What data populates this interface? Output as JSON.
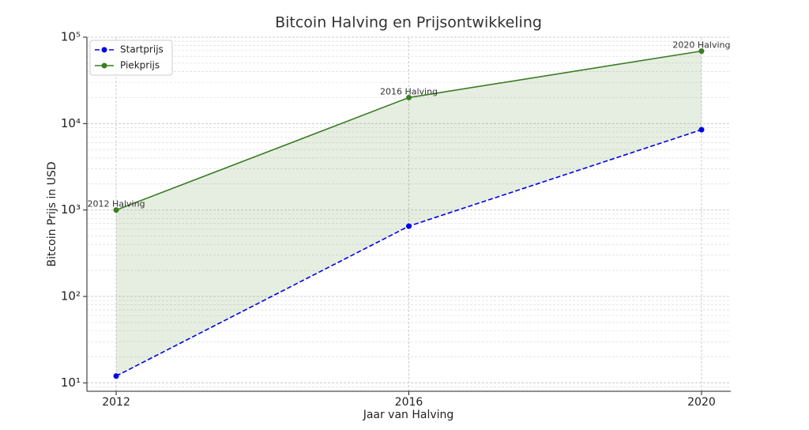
{
  "chart_data": {
    "type": "line",
    "title": "Bitcoin Halving en Prijsontwikkeling",
    "x_label": "Jaar van Halving",
    "y_label": "Bitcoin Prijs in USD",
    "x": [
      2012,
      2016,
      2020
    ],
    "series": [
      {
        "name": "Startprijs",
        "color": "#0000ee",
        "dashed": true,
        "values": [
          12,
          650,
          8500
        ]
      },
      {
        "name": "Piekprijs",
        "color": "#3a7d22",
        "dashed": false,
        "values": [
          1000,
          20000,
          69000
        ]
      }
    ],
    "fill_between": true,
    "fill_color": "#3a7d22",
    "annotations": [
      "2012 Halving",
      "2016 Halving",
      "2020 Halving"
    ],
    "xlim": [
      2011.6,
      2020.4
    ],
    "xticks": [
      2012,
      2016,
      2020
    ],
    "ylim": [
      8,
      100000
    ],
    "log_y": true,
    "yticks": [
      {
        "value": 10,
        "label": "10¹"
      },
      {
        "value": 100,
        "label": "10²"
      },
      {
        "value": 1000,
        "label": "10³"
      },
      {
        "value": 10000,
        "label": "10⁴"
      },
      {
        "value": 100000,
        "label": "10⁵"
      }
    ],
    "grid": true,
    "legend": "upper left"
  }
}
